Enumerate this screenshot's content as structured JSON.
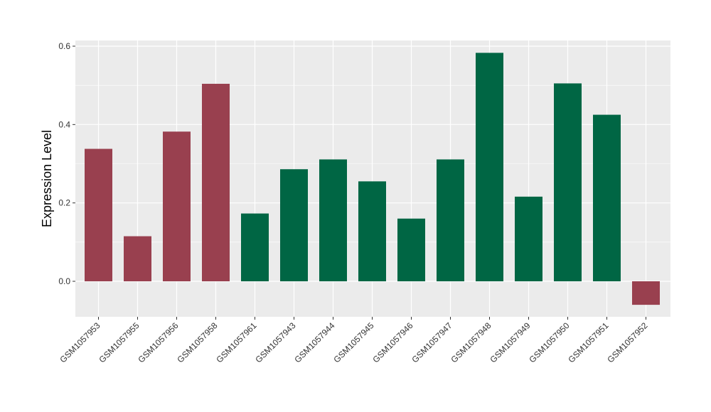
{
  "chart_data": {
    "type": "bar",
    "title": "",
    "xlabel": "",
    "ylabel": "Expression Level",
    "ylim": [
      -0.09,
      0.6
    ],
    "yticks": [
      0.0,
      0.2,
      0.4,
      0.6
    ],
    "ytick_labels": [
      "0.0",
      "0.2",
      "0.4",
      "0.6"
    ],
    "grid": true,
    "legend": "none",
    "categories": [
      "GSM1057953",
      "GSM1057955",
      "GSM1057956",
      "GSM1057958",
      "GSM1057961",
      "GSM1057943",
      "GSM1057944",
      "GSM1057945",
      "GSM1057946",
      "GSM1057947",
      "GSM1057948",
      "GSM1057949",
      "GSM1057950",
      "GSM1057951",
      "GSM1057952"
    ],
    "values": [
      0.338,
      0.115,
      0.382,
      0.504,
      0.173,
      0.286,
      0.311,
      0.255,
      0.16,
      0.311,
      0.583,
      0.216,
      0.505,
      0.425,
      -0.06
    ],
    "bar_colors": [
      "#99404f",
      "#99404f",
      "#99404f",
      "#99404f",
      "#006644",
      "#006644",
      "#006644",
      "#006644",
      "#006644",
      "#006644",
      "#006644",
      "#006644",
      "#006644",
      "#006644",
      "#99404f"
    ],
    "panel_background": "#ebebeb",
    "gridline_color": "#ffffff"
  }
}
